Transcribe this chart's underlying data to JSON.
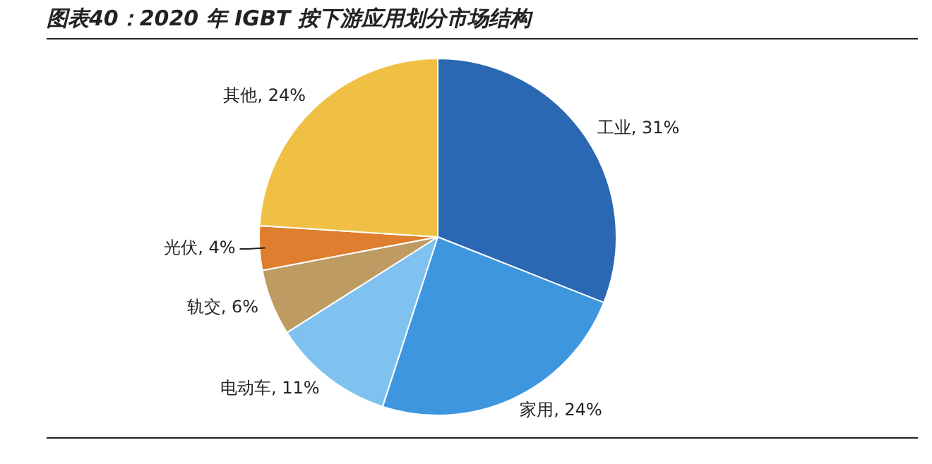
{
  "chart_data": {
    "type": "pie",
    "title": "图表40：2020 年 IGBT 按下游应用划分市场结构",
    "categories": [
      "工业",
      "家用",
      "电动车",
      "轨交",
      "光伏",
      "其他"
    ],
    "values": [
      31,
      24,
      11,
      6,
      4,
      24
    ],
    "value_labels": [
      "31%",
      "24%",
      "11%",
      "6%",
      "4%",
      "24%"
    ],
    "colors": [
      "#2b68b3",
      "#3e96df",
      "#7fc2ef",
      "#bd9b62",
      "#de7e2e",
      "#f0c045"
    ],
    "legend": false
  }
}
